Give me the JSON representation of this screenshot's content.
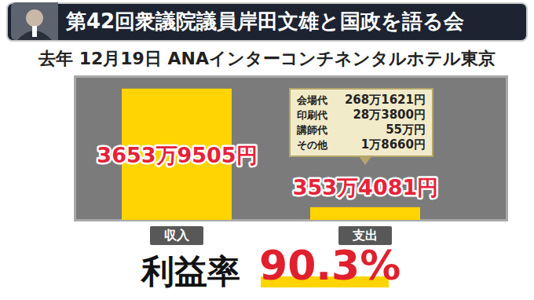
{
  "chart_data": {
    "type": "bar",
    "title": "第42回衆議院議員岸田文雄と国政を語る会",
    "subtitle": "去年 12月19日 ANAインターコンチネンタルホテル東京",
    "categories": [
      "収入",
      "支出"
    ],
    "values": [
      36539505,
      3534081
    ],
    "value_labels": [
      "3653万9505円",
      "353万4081円"
    ],
    "color": "#ffd400",
    "ylim": [
      0,
      40000000
    ],
    "tick_labels": "x",
    "data_labels": true,
    "breakdown": {
      "categories": [
        "会場代",
        "印刷代",
        "講師代",
        "その他"
      ],
      "values": [
        2681621,
        283800,
        550000,
        18660
      ],
      "value_labels": [
        "268万1621円",
        "28万3800円",
        "55万円",
        "1万8660円"
      ]
    },
    "profit_rate": {
      "label": "利益率",
      "value": 90.3,
      "value_label": "90.3%"
    }
  }
}
